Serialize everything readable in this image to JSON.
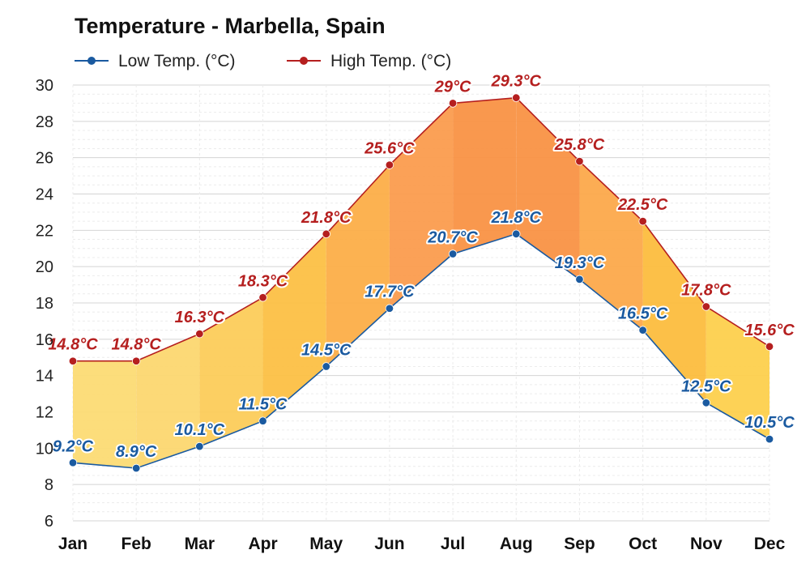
{
  "chart_data": {
    "type": "area",
    "title": "Temperature - Marbella, Spain",
    "xlabel": "",
    "ylabel": "",
    "categories": [
      "Jan",
      "Feb",
      "Mar",
      "Apr",
      "May",
      "Jun",
      "Jul",
      "Aug",
      "Sep",
      "Oct",
      "Nov",
      "Dec"
    ],
    "ylim": [
      6,
      30
    ],
    "yticks": [
      6,
      8,
      10,
      12,
      14,
      16,
      18,
      20,
      22,
      24,
      26,
      28,
      30
    ],
    "grid": true,
    "legend_position": "top-left",
    "series": [
      {
        "name": "Low Temp. (°C)",
        "color": "#1a5aa0",
        "values": [
          9.2,
          8.9,
          10.1,
          11.5,
          14.5,
          17.7,
          20.7,
          21.8,
          19.3,
          16.5,
          12.5,
          10.5
        ],
        "labels": [
          "9.2°C",
          "8.9°C",
          "10.1°C",
          "11.5°C",
          "14.5°C",
          "17.7°C",
          "20.7°C",
          "21.8°C",
          "19.3°C",
          "16.5°C",
          "12.5°C",
          "10.5°C"
        ]
      },
      {
        "name": "High Temp. (°C)",
        "color": "#b51f1f",
        "values": [
          14.8,
          14.8,
          16.3,
          18.3,
          21.8,
          25.6,
          29.0,
          29.3,
          25.8,
          22.5,
          17.8,
          15.6
        ],
        "labels": [
          "14.8°C",
          "14.8°C",
          "16.3°C",
          "18.3°C",
          "21.8°C",
          "25.6°C",
          "29°C",
          "29.3°C",
          "25.8°C",
          "22.5°C",
          "17.8°C",
          "15.6°C"
        ]
      }
    ],
    "band_fill_colors": [
      "#fcdb74",
      "#fcd770",
      "#fccc5a",
      "#fcc045",
      "#fcae48",
      "#fb9c4e",
      "#f99245",
      "#f99244",
      "#fca94b",
      "#fcbd3e",
      "#fdd04d",
      "#fdda62"
    ]
  }
}
